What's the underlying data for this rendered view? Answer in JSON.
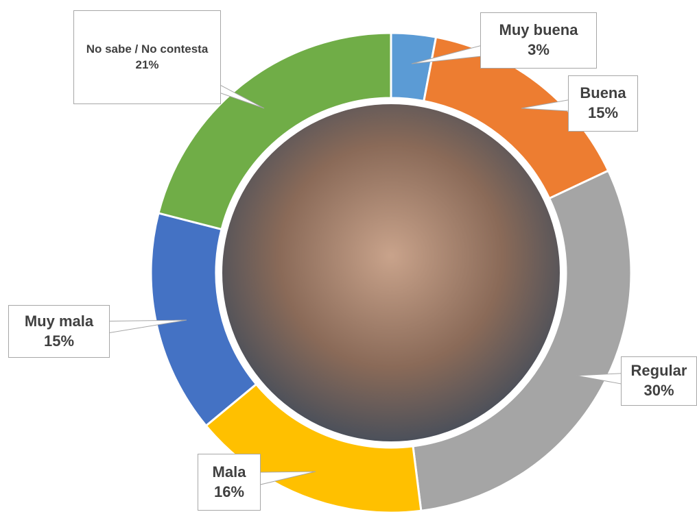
{
  "chart_data": {
    "type": "donut",
    "categories": [
      "Muy buena",
      "Buena",
      "Regular",
      "Mala",
      "Muy mala",
      "No sabe / No contesta"
    ],
    "values": [
      3,
      15,
      30,
      16,
      15,
      21
    ],
    "value_labels": [
      "3%",
      "15%",
      "30%",
      "16%",
      "15%",
      "21%"
    ],
    "colors": [
      "#5b9bd5",
      "#ed7d31",
      "#a5a5a5",
      "#ffc000",
      "#4472c4",
      "#70ad47"
    ]
  }
}
